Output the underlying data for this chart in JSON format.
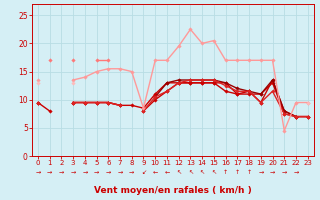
{
  "x": [
    0,
    1,
    2,
    3,
    4,
    5,
    6,
    7,
    8,
    9,
    10,
    11,
    12,
    13,
    14,
    15,
    16,
    17,
    18,
    19,
    20,
    21,
    22,
    23
  ],
  "lines": [
    {
      "y": [
        9.5,
        8.0,
        null,
        9.5,
        9.5,
        9.5,
        9.5,
        9.0,
        9.0,
        8.5,
        11.0,
        13.0,
        13.0,
        13.0,
        13.0,
        13.0,
        11.5,
        11.0,
        11.0,
        11.0,
        13.0,
        7.5,
        7.0,
        7.0
      ],
      "color": "#cc0000",
      "lw": 1.0,
      "marker": "D",
      "ms": 1.8
    },
    {
      "y": [
        9.5,
        null,
        null,
        9.5,
        9.5,
        9.5,
        9.5,
        9.0,
        null,
        8.0,
        10.0,
        11.5,
        13.0,
        13.0,
        13.0,
        13.0,
        13.0,
        11.0,
        11.5,
        9.5,
        13.5,
        8.0,
        7.0,
        7.0
      ],
      "color": "#cc0000",
      "lw": 1.0,
      "marker": "D",
      "ms": 1.8
    },
    {
      "y": [
        null,
        null,
        null,
        null,
        null,
        null,
        null,
        null,
        null,
        null,
        10.5,
        13.0,
        13.5,
        13.5,
        13.5,
        13.5,
        13.0,
        12.0,
        11.5,
        11.0,
        13.5,
        8.0,
        7.0,
        null
      ],
      "color": "#990000",
      "lw": 1.0,
      "marker": "D",
      "ms": 1.8
    },
    {
      "y": [
        9.5,
        null,
        null,
        9.5,
        9.5,
        9.5,
        9.5,
        9.0,
        null,
        8.0,
        10.5,
        11.5,
        13.0,
        13.5,
        13.5,
        13.5,
        12.5,
        11.5,
        11.5,
        9.5,
        11.5,
        7.5,
        7.0,
        7.0
      ],
      "color": "#dd2222",
      "lw": 1.0,
      "marker": "D",
      "ms": 1.8
    },
    {
      "y": [
        13.5,
        null,
        null,
        13.5,
        14.0,
        15.0,
        15.5,
        15.5,
        15.0,
        8.5,
        17.0,
        17.0,
        19.5,
        22.5,
        20.0,
        20.5,
        17.0,
        17.0,
        17.0,
        17.0,
        17.0,
        4.5,
        9.5,
        9.5
      ],
      "color": "#ff9999",
      "lw": 1.0,
      "marker": "D",
      "ms": 1.8
    },
    {
      "y": [
        null,
        17.0,
        null,
        17.0,
        null,
        17.0,
        17.0,
        null,
        null,
        null,
        null,
        null,
        null,
        null,
        null,
        null,
        null,
        null,
        null,
        null,
        null,
        null,
        null,
        null
      ],
      "color": "#ff7777",
      "lw": 1.0,
      "marker": "D",
      "ms": 1.8
    },
    {
      "y": [
        13.0,
        null,
        null,
        13.0,
        null,
        null,
        null,
        null,
        null,
        null,
        null,
        null,
        null,
        null,
        null,
        null,
        null,
        null,
        null,
        null,
        null,
        null,
        null,
        9.5
      ],
      "color": "#ffbbbb",
      "lw": 1.0,
      "marker": "D",
      "ms": 1.8
    }
  ],
  "wind_arrows": [
    {
      "x": 0,
      "sym": "→"
    },
    {
      "x": 1,
      "sym": "→"
    },
    {
      "x": 2,
      "sym": "→"
    },
    {
      "x": 3,
      "sym": "→"
    },
    {
      "x": 4,
      "sym": "→"
    },
    {
      "x": 5,
      "sym": "→"
    },
    {
      "x": 6,
      "sym": "→"
    },
    {
      "x": 7,
      "sym": "→"
    },
    {
      "x": 8,
      "sym": "→"
    },
    {
      "x": 9,
      "sym": "↙"
    },
    {
      "x": 10,
      "sym": "←"
    },
    {
      "x": 11,
      "sym": "←"
    },
    {
      "x": 12,
      "sym": "↖"
    },
    {
      "x": 13,
      "sym": "↖"
    },
    {
      "x": 14,
      "sym": "↖"
    },
    {
      "x": 15,
      "sym": "↖"
    },
    {
      "x": 16,
      "sym": "↑"
    },
    {
      "x": 17,
      "sym": "↑"
    },
    {
      "x": 18,
      "sym": "↑"
    },
    {
      "x": 19,
      "sym": "→"
    },
    {
      "x": 20,
      "sym": "→"
    },
    {
      "x": 21,
      "sym": "→"
    },
    {
      "x": 22,
      "sym": "→"
    }
  ],
  "xlim": [
    -0.5,
    23.5
  ],
  "ylim": [
    0,
    27
  ],
  "yticks": [
    0,
    5,
    10,
    15,
    20,
    25
  ],
  "xticks": [
    0,
    1,
    2,
    3,
    4,
    5,
    6,
    7,
    8,
    9,
    10,
    11,
    12,
    13,
    14,
    15,
    16,
    17,
    18,
    19,
    20,
    21,
    22,
    23
  ],
  "xlabel": "Vent moyen/en rafales ( km/h )",
  "bg_color": "#d5eff5",
  "grid_color": "#b8dde4",
  "tick_color": "#cc0000",
  "xlabel_color": "#cc0000",
  "spine_color": "#cc0000"
}
